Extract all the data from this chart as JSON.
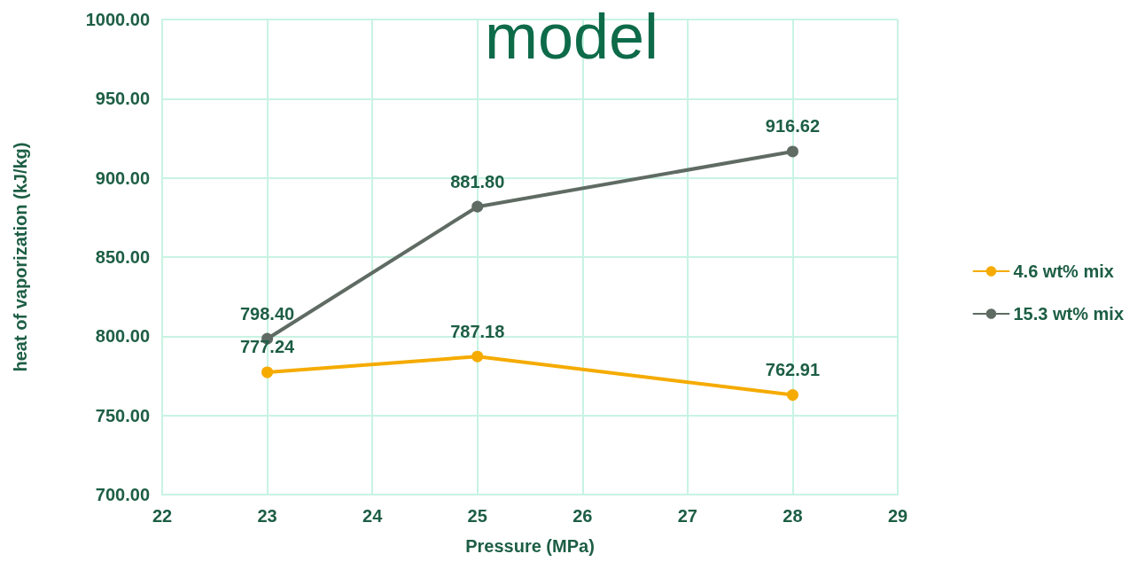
{
  "chart_data": {
    "type": "line",
    "title": "model",
    "xlabel": "Pressure (MPa)",
    "ylabel": "heat of vaporization (kJ/kg)",
    "xlim": [
      22,
      29
    ],
    "xticks": [
      22,
      23,
      24,
      25,
      26,
      27,
      28,
      29
    ],
    "ylim": [
      700,
      1000
    ],
    "yticks": [
      {
        "value": 700,
        "label": "700.00"
      },
      {
        "value": 750,
        "label": "750.00"
      },
      {
        "value": 800,
        "label": "800.00"
      },
      {
        "value": 850,
        "label": "850.00"
      },
      {
        "value": 900,
        "label": "900.00"
      },
      {
        "value": 950,
        "label": "950.00"
      },
      {
        "value": 1000,
        "label": "1000.00"
      }
    ],
    "grid": true,
    "legend": "right",
    "marker": "circle",
    "line_style": "solid",
    "series": [
      {
        "name": "4.6 wt% mix",
        "color": "#f5ab00",
        "x": [
          23,
          25,
          28
        ],
        "values": [
          777.24,
          787.18,
          762.91
        ],
        "value_labels": [
          "777.24",
          "787.18",
          "762.91"
        ]
      },
      {
        "name": "15.3 wt% mix",
        "color": "#5f6b63",
        "x": [
          23,
          25,
          28
        ],
        "values": [
          798.4,
          881.8,
          916.62
        ],
        "value_labels": [
          "798.40",
          "881.80",
          "916.62"
        ]
      }
    ]
  }
}
